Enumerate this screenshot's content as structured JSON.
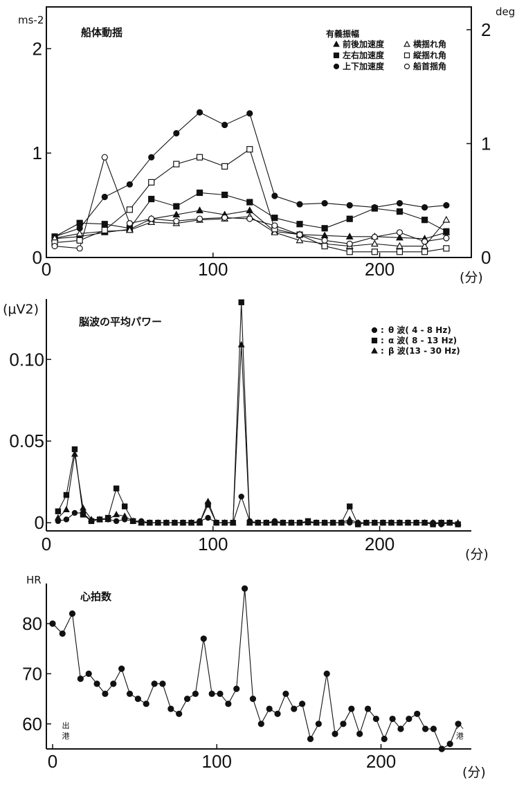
{
  "chart_data": [
    {
      "type": "line",
      "title": "船体動揺",
      "ylabel": "ms-2",
      "ylabel_right": "deg",
      "xunit": "(分)",
      "xlim": [
        0,
        255
      ],
      "ylim": [
        0,
        2.4
      ],
      "ylim_right": [
        0,
        2.2
      ],
      "xticks": [
        0,
        100,
        200
      ],
      "yticks": [
        0,
        1,
        2
      ],
      "yticks_right": [
        0,
        1,
        2
      ],
      "legend_title": "有義振幅",
      "legend_position": "top-right",
      "x": [
        5,
        20,
        35,
        50,
        63,
        78,
        92,
        107,
        122,
        137,
        152,
        167,
        182,
        197,
        212,
        227,
        240
      ],
      "series": [
        {
          "name": "前後加速度",
          "marker": "filled-triangle",
          "axis": "left",
          "values": [
            0.18,
            0.2,
            0.24,
            0.27,
            0.37,
            0.41,
            0.45,
            0.41,
            0.45,
            0.25,
            0.22,
            0.21,
            0.2,
            0.2,
            0.19,
            0.18,
            0.24
          ]
        },
        {
          "name": "左右加速度",
          "marker": "filled-square",
          "axis": "left",
          "values": [
            0.2,
            0.33,
            0.32,
            0.28,
            0.56,
            0.49,
            0.62,
            0.6,
            0.53,
            0.38,
            0.32,
            0.28,
            0.37,
            0.47,
            0.44,
            0.36,
            0.25
          ]
        },
        {
          "name": "上下加速度",
          "marker": "filled-circle",
          "axis": "left",
          "values": [
            0.2,
            0.28,
            0.58,
            0.7,
            0.96,
            1.19,
            1.39,
            1.27,
            1.38,
            0.59,
            0.51,
            0.52,
            0.5,
            0.48,
            0.52,
            0.48,
            0.5
          ]
        },
        {
          "name": "横揺れ角",
          "marker": "open-triangle",
          "axis": "right",
          "values": [
            0.17,
            0.21,
            0.23,
            0.24,
            0.31,
            0.3,
            0.33,
            0.34,
            0.36,
            0.22,
            0.15,
            0.12,
            0.1,
            0.12,
            0.1,
            0.1,
            0.33
          ]
        },
        {
          "name": "縦揺れ角",
          "marker": "open-square",
          "axis": "right",
          "values": [
            0.13,
            0.15,
            0.24,
            0.42,
            0.66,
            0.82,
            0.88,
            0.8,
            0.95,
            0.25,
            0.2,
            0.1,
            0.05,
            0.05,
            0.05,
            0.05,
            0.08
          ]
        },
        {
          "name": "船首揺角",
          "marker": "open-circle",
          "axis": "right",
          "values": [
            0.1,
            0.08,
            0.88,
            0.3,
            0.34,
            0.32,
            0.34,
            0.35,
            0.34,
            0.28,
            0.2,
            0.15,
            0.12,
            0.18,
            0.22,
            0.14,
            0.17
          ]
        }
      ]
    },
    {
      "type": "line",
      "title": "脳波の平均パワー",
      "ylabel": "(μV2)",
      "xunit": "(分)",
      "xlim": [
        0,
        255
      ],
      "ylim": [
        -0.005,
        0.137
      ],
      "xticks": [
        0,
        100,
        200
      ],
      "yticks": [
        0,
        0.05,
        0.1
      ],
      "ytick_labels": [
        "0",
        "0.05",
        "0.10"
      ],
      "legend_position": "top-right",
      "x": [
        7,
        12,
        17,
        22,
        27,
        32,
        37,
        42,
        47,
        52,
        57,
        62,
        67,
        72,
        77,
        82,
        87,
        92,
        97,
        102,
        107,
        112,
        117,
        122,
        127,
        132,
        137,
        142,
        147,
        152,
        157,
        162,
        167,
        172,
        177,
        182,
        187,
        192,
        197,
        202,
        207,
        212,
        217,
        222,
        227,
        232,
        237,
        242,
        247
      ],
      "series": [
        {
          "name": "θ 波( 4 - 8 Hz)",
          "marker": "filled-circle",
          "values": [
            0.001,
            0.002,
            0.006,
            0.006,
            0.001,
            0.002,
            0.002,
            0.001,
            0.002,
            0.001,
            0.001,
            0,
            0,
            0,
            0,
            0,
            0,
            0.001,
            0.003,
            0,
            0,
            0,
            0.016,
            0.001,
            0,
            0,
            0.001,
            0,
            0,
            0,
            0,
            0,
            0,
            0,
            0,
            0,
            0,
            0,
            0,
            0,
            0,
            0,
            0,
            0,
            0,
            0,
            -0.001,
            0,
            -0.001
          ]
        },
        {
          "name": "α 波( 8 - 13 Hz)",
          "marker": "filled-square",
          "values": [
            0.007,
            0.017,
            0.045,
            0.005,
            0.001,
            0.002,
            0.003,
            0.021,
            0.01,
            0.001,
            0,
            0,
            0,
            0,
            0,
            0,
            0,
            0,
            0.011,
            0,
            0,
            0,
            0.135,
            0,
            0,
            0,
            0,
            0,
            0,
            0,
            0.001,
            0,
            0,
            0,
            0,
            0.01,
            -0.001,
            0,
            0,
            0,
            0,
            0,
            0,
            0,
            0,
            -0.001,
            0,
            0,
            -0.001
          ]
        },
        {
          "name": "β 波(13 - 30 Hz)",
          "marker": "filled-triangle",
          "values": [
            0.003,
            0.008,
            0.042,
            0.009,
            0.002,
            0.002,
            0.002,
            0.005,
            0.004,
            0.001,
            0,
            0,
            0,
            0,
            0,
            0,
            0,
            0,
            0.013,
            0,
            0,
            0,
            0.109,
            0,
            0,
            0,
            0,
            0,
            0,
            0,
            0,
            0,
            0,
            0,
            0,
            0.002,
            0,
            0,
            0,
            0,
            0,
            0,
            0,
            0,
            0,
            0,
            0,
            0,
            0
          ]
        }
      ]
    },
    {
      "type": "line",
      "title": "心拍数",
      "ylabel": "HR",
      "xunit": "(分)",
      "xlim": [
        0,
        255
      ],
      "ylim": [
        55,
        88
      ],
      "xticks": [
        0,
        100,
        200
      ],
      "yticks": [
        60,
        70,
        80
      ],
      "annotations": [
        {
          "text": "出港",
          "x": 8
        },
        {
          "text": "入港",
          "x": 248
        }
      ],
      "x": [
        0,
        6,
        12,
        17,
        22,
        27,
        32,
        37,
        42,
        47,
        52,
        57,
        62,
        67,
        72,
        77,
        82,
        87,
        92,
        97,
        102,
        107,
        112,
        117,
        122,
        127,
        132,
        137,
        142,
        147,
        152,
        157,
        162,
        167,
        172,
        177,
        182,
        187,
        192,
        197,
        202,
        207,
        212,
        217,
        222,
        227,
        232,
        237,
        242,
        247
      ],
      "series": [
        {
          "name": "",
          "marker": "filled-circle",
          "values": [
            80,
            78,
            82,
            69,
            70,
            68,
            66,
            68,
            71,
            66,
            65,
            64,
            68,
            68,
            63,
            62,
            65,
            66,
            77,
            66,
            66,
            64,
            67,
            87,
            65,
            60,
            63,
            62,
            66,
            63,
            64,
            57,
            60,
            70,
            58,
            60,
            63,
            58,
            63,
            61,
            57,
            61,
            59,
            61,
            62,
            59,
            59,
            55,
            56,
            60
          ]
        }
      ]
    }
  ]
}
